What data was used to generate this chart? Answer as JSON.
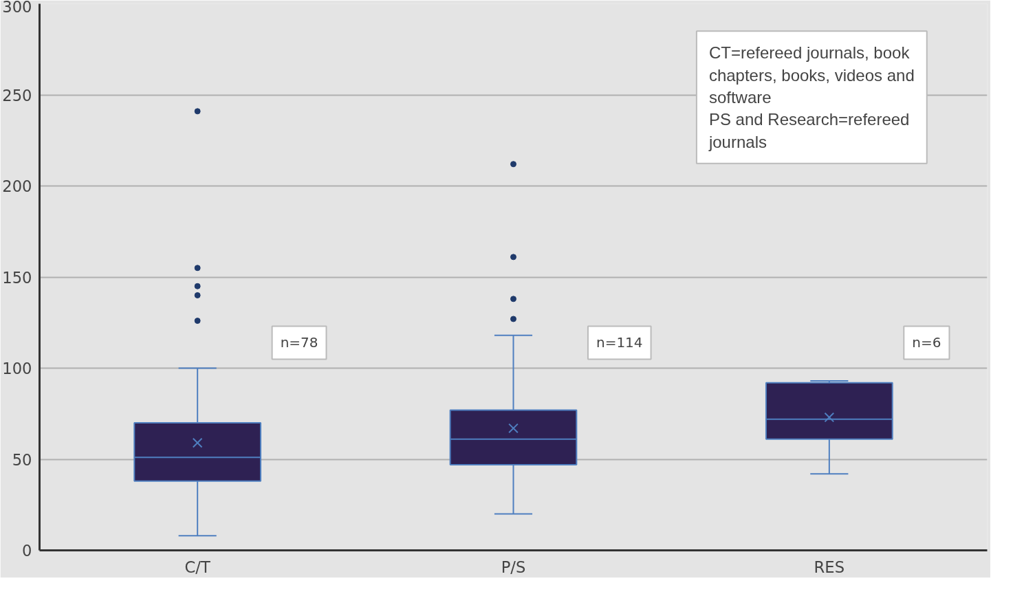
{
  "chart_data": {
    "type": "box",
    "categories": [
      "C/T",
      "P/S",
      "RES"
    ],
    "series": [
      {
        "color": "#2e2153",
        "boxes": [
          {
            "low": 8,
            "q1": 38,
            "median": 51,
            "q3": 70,
            "high": 100,
            "mean": 59,
            "outliers": [
              241,
              155,
              145,
              140,
              126
            ]
          },
          {
            "low": 20,
            "q1": 47,
            "median": 61,
            "q3": 77,
            "high": 118,
            "mean": 67,
            "outliers": [
              212,
              161,
              138,
              127
            ]
          },
          {
            "low": 42,
            "q1": 61,
            "median": 72,
            "q3": 92,
            "high": 93,
            "mean": 73
          }
        ]
      }
    ],
    "ylim": [
      0,
      300
    ],
    "yticks": [
      0,
      50,
      100,
      150,
      200,
      250,
      300
    ],
    "grid": "y",
    "marker": "circle",
    "annotations": [
      "n=78",
      "n=114",
      "n=6",
      "CT=refereed journals, book chapters, books, videos and software",
      "PS and Research=refereed journals"
    ]
  }
}
